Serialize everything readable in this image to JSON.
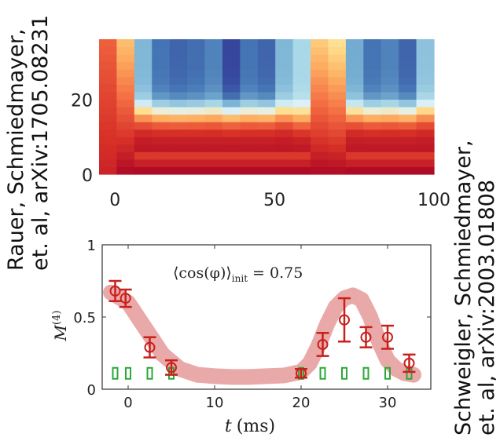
{
  "citations": {
    "left_line1": "Rauer, Schmiedmayer,",
    "left_line2": "et. al, arXiv:1705.08231",
    "right_line1": "Schweigler, Schmiedmayer,",
    "right_line2": "et. al, arXiv:2003.01808"
  },
  "chart_data": [
    {
      "type": "heatmap",
      "x_ticks": [
        "0",
        "50",
        "100"
      ],
      "y_ticks": [
        "0",
        "20"
      ],
      "xlim": [
        -5,
        100
      ],
      "ylim": [
        0,
        36
      ],
      "columns": 19,
      "rows": 18,
      "colormap": [
        "#a50026",
        "#d73027",
        "#f46d43",
        "#fdae61",
        "#fee090",
        "#e0f3f8",
        "#abd9e9",
        "#74add1",
        "#4575b4",
        "#313695"
      ],
      "column_depth": [
        0.0,
        0.15,
        0.55,
        0.8,
        0.85,
        0.82,
        0.75,
        0.95,
        0.8,
        0.85,
        0.55,
        0.4,
        0.2,
        0.3,
        0.6,
        0.8,
        0.75,
        0.85,
        0.5
      ],
      "column_edge": [
        0,
        0,
        24,
        24,
        24,
        24,
        24,
        24,
        24,
        24,
        24,
        22,
        0,
        0,
        24,
        24,
        24,
        24,
        24
      ]
    },
    {
      "type": "scatter",
      "xlabel_var": "t",
      "xlabel_unit": "(ms)",
      "ylabel": "M",
      "ylabel_sup": "(4)",
      "x_ticks": [
        "0",
        "10",
        "20",
        "30"
      ],
      "y_ticks": [
        "0",
        "0.5",
        "1"
      ],
      "xlim": [
        -3,
        35
      ],
      "ylim": [
        0,
        1
      ],
      "annotation": "⟨cos(φ)⟩",
      "annotation_sub": "init",
      "annotation_value": "= 0.75",
      "colors": {
        "data": "#c8201c",
        "band": "#e8a0a0",
        "bars": "#2aa838"
      },
      "data_points": [
        {
          "x": -1.5,
          "y": 0.68,
          "err": 0.07
        },
        {
          "x": -0.3,
          "y": 0.63,
          "err": 0.06
        },
        {
          "x": 2.5,
          "y": 0.29,
          "err": 0.07
        },
        {
          "x": 5,
          "y": 0.15,
          "err": 0.05
        },
        {
          "x": 20,
          "y": 0.11,
          "err": 0.03
        },
        {
          "x": 22.5,
          "y": 0.31,
          "err": 0.08
        },
        {
          "x": 25,
          "y": 0.48,
          "err": 0.15
        },
        {
          "x": 27.5,
          "y": 0.36,
          "err": 0.07
        },
        {
          "x": 30,
          "y": 0.36,
          "err": 0.08
        },
        {
          "x": 32.5,
          "y": 0.18,
          "err": 0.06
        }
      ],
      "model_band": {
        "x": [
          -2,
          0,
          2,
          4,
          6,
          8,
          10,
          12,
          14,
          16,
          18,
          20,
          21,
          22,
          23,
          24,
          25,
          26,
          27,
          28,
          29,
          30,
          31,
          32,
          33
        ],
        "y": [
          0.67,
          0.6,
          0.42,
          0.24,
          0.14,
          0.1,
          0.09,
          0.085,
          0.085,
          0.09,
          0.095,
          0.12,
          0.18,
          0.3,
          0.45,
          0.57,
          0.63,
          0.65,
          0.62,
          0.5,
          0.33,
          0.2,
          0.14,
          0.11,
          0.1
        ]
      },
      "reference_bars": [
        {
          "x": -1.5,
          "y": 0.11
        },
        {
          "x": 0,
          "y": 0.11
        },
        {
          "x": 2.5,
          "y": 0.11
        },
        {
          "x": 5,
          "y": 0.11
        },
        {
          "x": 20,
          "y": 0.11
        },
        {
          "x": 22.5,
          "y": 0.11
        },
        {
          "x": 25,
          "y": 0.11
        },
        {
          "x": 27.5,
          "y": 0.11
        },
        {
          "x": 30,
          "y": 0.11
        },
        {
          "x": 32.5,
          "y": 0.11
        }
      ]
    }
  ]
}
